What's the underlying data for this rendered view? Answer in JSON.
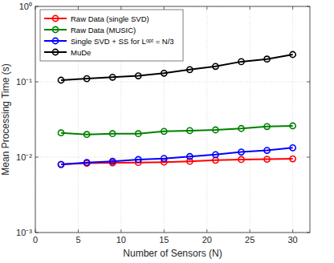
{
  "chart_data": {
    "type": "line",
    "x_label": "Number of Sensors (N)",
    "y_label": "Mean Processing Time (s)",
    "log": "y",
    "grid": true,
    "legend": "upper-left",
    "marker": "circle",
    "line_style": "solid",
    "xlim": [
      0,
      32
    ],
    "xticks": [
      0,
      5,
      10,
      15,
      20,
      25,
      30
    ],
    "ylim": [
      0.001,
      1
    ],
    "yticks": [
      {
        "value": 0.001,
        "label": "10⁻³"
      },
      {
        "value": 0.01,
        "label": "10⁻²"
      },
      {
        "value": 0.1,
        "label": "10⁻¹"
      },
      {
        "value": 1,
        "label": "10⁰"
      }
    ],
    "x": [
      3,
      6,
      9,
      12,
      15,
      18,
      21,
      24,
      27,
      30
    ],
    "series": [
      {
        "name": "Raw Data (single SVD)",
        "color": "#ff0000",
        "values": [
          0.008,
          0.0083,
          0.0084,
          0.0085,
          0.0086,
          0.0088,
          0.0091,
          0.0093,
          0.0094,
          0.0095
        ]
      },
      {
        "name": "Raw Data (MUSIC)",
        "color": "#008000",
        "values": [
          0.021,
          0.02,
          0.0205,
          0.0205,
          0.022,
          0.0225,
          0.023,
          0.024,
          0.0255,
          0.026
        ]
      },
      {
        "name": "Single SVD + SS for Lᵒᵖᵗ = N/3",
        "color": "#0000ff",
        "values": [
          0.008,
          0.0085,
          0.0088,
          0.0093,
          0.0096,
          0.0102,
          0.0108,
          0.0117,
          0.0123,
          0.0133
        ]
      },
      {
        "name": "MuDe",
        "color": "#000000",
        "values": [
          0.105,
          0.11,
          0.115,
          0.12,
          0.13,
          0.145,
          0.16,
          0.185,
          0.2,
          0.23
        ]
      }
    ]
  }
}
